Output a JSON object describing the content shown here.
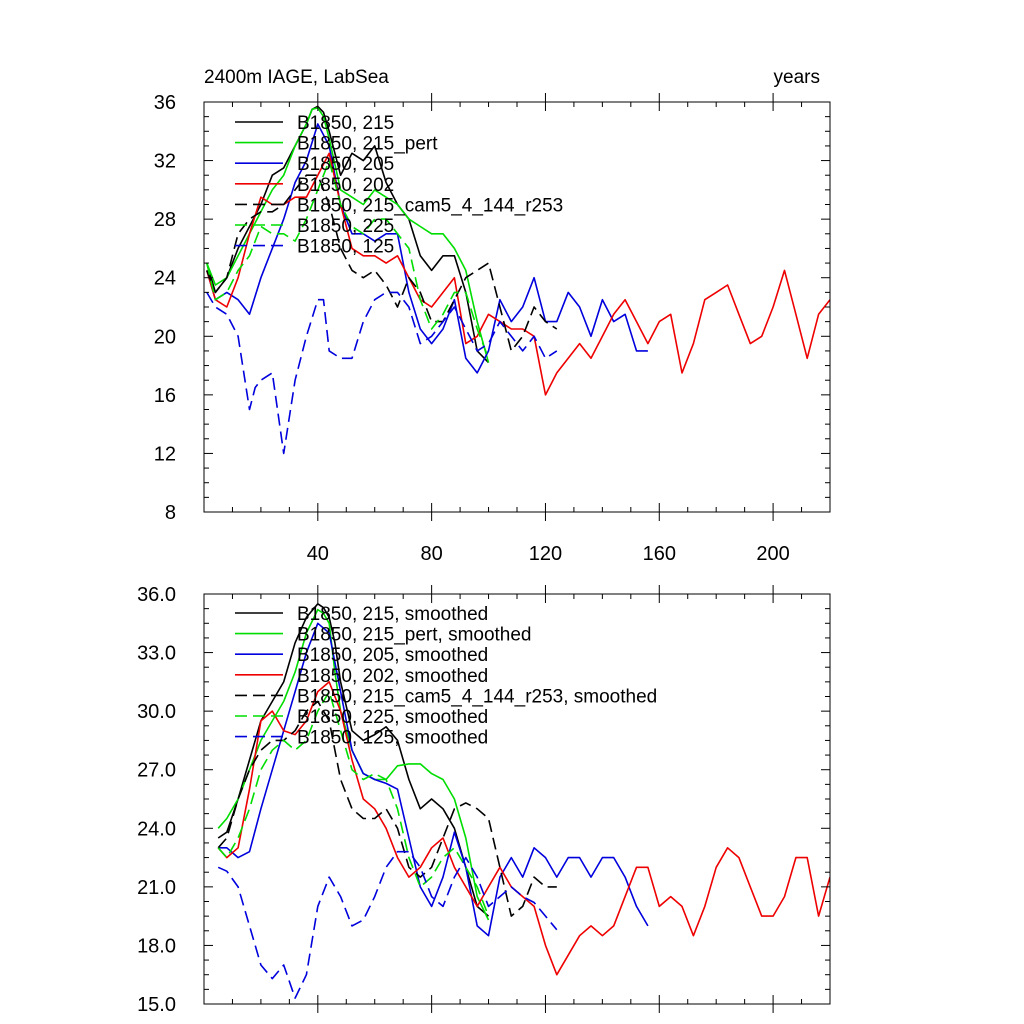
{
  "chart_data": [
    {
      "type": "line",
      "title": "2400m IAGE, LabSea",
      "units_label": "years",
      "xlim": [
        0,
        220
      ],
      "ylim": [
        8,
        36
      ],
      "xticks": [
        40,
        80,
        120,
        160,
        200
      ],
      "xtick_labels": [
        "40",
        "80",
        "120",
        "160",
        "200"
      ],
      "yticks": [
        8,
        12,
        16,
        20,
        24,
        28,
        32,
        36
      ],
      "ytick_labels": [
        "8",
        "12",
        "16",
        "20",
        "24",
        "28",
        "32",
        "36"
      ],
      "series": [
        {
          "name": "B1850, 215",
          "color": "#000000",
          "dash": "solid",
          "x": [
            1,
            4,
            8,
            12,
            16,
            20,
            24,
            28,
            32,
            36,
            38,
            40,
            42,
            44,
            48,
            52,
            56,
            60,
            64,
            68,
            72,
            76,
            80,
            84,
            88,
            92,
            96,
            100
          ],
          "y": [
            25,
            23,
            24,
            26,
            27.5,
            29,
            31,
            31.5,
            33,
            34.5,
            35.5,
            35.7,
            35.3,
            34,
            31,
            32.5,
            32,
            33,
            30.5,
            29,
            28,
            25.5,
            24.5,
            25.5,
            25.5,
            23,
            19,
            18.2
          ]
        },
        {
          "name": "B1850, 215_pert",
          "color": "#00dd00",
          "dash": "solid",
          "x": [
            1,
            4,
            8,
            12,
            16,
            20,
            24,
            28,
            32,
            36,
            38,
            40,
            42,
            44,
            48,
            52,
            56,
            60,
            64,
            68,
            72,
            76,
            80,
            84,
            88,
            92,
            96,
            100
          ],
          "y": [
            25,
            23.5,
            24,
            25.5,
            27,
            28.5,
            30,
            31,
            33,
            34.5,
            35.5,
            35.6,
            35,
            33.5,
            30,
            29.5,
            29,
            30,
            29.5,
            29,
            28,
            27.5,
            27,
            27,
            26,
            24.5,
            21,
            18.2
          ]
        },
        {
          "name": "B1850, 205",
          "color": "#0000dd",
          "dash": "solid",
          "x": [
            1,
            4,
            8,
            12,
            16,
            20,
            24,
            28,
            32,
            36,
            40,
            44,
            48,
            52,
            56,
            60,
            64,
            68,
            72,
            76,
            80,
            84,
            88,
            92,
            96,
            100,
            104,
            108,
            112,
            116,
            120,
            124,
            128,
            132,
            136,
            140,
            144,
            148,
            152,
            156
          ],
          "y": [
            24.5,
            22.5,
            23,
            22.5,
            21.5,
            24,
            26,
            28,
            30.5,
            32,
            34.5,
            33,
            29,
            27,
            27,
            26.5,
            27,
            27,
            23,
            20.5,
            19.5,
            20.5,
            22.5,
            18.5,
            17.5,
            19,
            22.5,
            21,
            22,
            24,
            21,
            21,
            23,
            22,
            20,
            22.5,
            21,
            21.5,
            19,
            19
          ]
        },
        {
          "name": "B1850, 202",
          "color": "#ee0000",
          "dash": "solid",
          "x": [
            1,
            4,
            8,
            12,
            16,
            20,
            24,
            28,
            32,
            36,
            40,
            44,
            48,
            52,
            56,
            60,
            64,
            68,
            72,
            76,
            80,
            84,
            88,
            92,
            96,
            100,
            104,
            108,
            112,
            116,
            120,
            124,
            128,
            132,
            136,
            140,
            144,
            148,
            152,
            156,
            160,
            164,
            168,
            172,
            176,
            180,
            184,
            188,
            192,
            196,
            200,
            204,
            208,
            212,
            216,
            220
          ],
          "y": [
            24.5,
            22.5,
            22,
            24,
            27,
            29.5,
            29,
            29,
            29.5,
            29.5,
            31,
            32.5,
            29,
            26,
            25.5,
            25.5,
            25,
            25.5,
            24,
            22.5,
            22,
            23,
            24,
            19.5,
            20,
            21.5,
            21,
            20.5,
            20.5,
            20,
            16,
            17.5,
            18.5,
            19.5,
            18.5,
            20,
            21.5,
            22.5,
            21,
            19.5,
            21,
            21.5,
            17.5,
            19.5,
            22.5,
            23,
            23.5,
            21.5,
            19.5,
            20,
            22,
            24.5,
            21.5,
            18.5,
            21.5,
            22.5
          ]
        },
        {
          "name": "B1850, 215_cam5_4_144_r253",
          "color": "#000000",
          "dash": "dashed",
          "x": [
            1,
            4,
            8,
            12,
            16,
            20,
            24,
            28,
            32,
            36,
            40,
            44,
            48,
            52,
            56,
            60,
            64,
            68,
            72,
            76,
            80,
            84,
            88,
            92,
            96,
            100,
            104,
            108,
            112,
            116,
            120,
            124
          ],
          "y": [
            24.5,
            23,
            24,
            27,
            28,
            28.5,
            28.5,
            29,
            30,
            31,
            31,
            29,
            26,
            24.5,
            24,
            24.5,
            23.5,
            22,
            24,
            23,
            21,
            21,
            22.5,
            24,
            24.5,
            25,
            22,
            19,
            20,
            22,
            21,
            20.5
          ]
        },
        {
          "name": "B1850, 225",
          "color": "#00dd00",
          "dash": "dashed",
          "x": [
            1,
            4,
            8,
            12,
            16,
            20,
            24,
            28,
            32,
            36,
            40,
            44,
            48,
            52,
            56,
            60,
            64,
            68,
            72,
            76,
            80,
            84,
            88,
            92,
            96,
            100
          ],
          "y": [
            25,
            22.5,
            23,
            24.5,
            25.5,
            27.5,
            27,
            27,
            26.5,
            28,
            30,
            32,
            29,
            27.5,
            27,
            28,
            28,
            27,
            26,
            22.5,
            20.5,
            21.5,
            23,
            23,
            20.5,
            18.5
          ]
        },
        {
          "name": "B1850, 125",
          "color": "#0000dd",
          "dash": "dashed",
          "x": [
            1,
            4,
            8,
            12,
            16,
            18,
            20,
            24,
            28,
            32,
            36,
            40,
            42,
            44,
            48,
            52,
            56,
            60,
            64,
            68,
            72,
            76,
            80,
            84,
            88,
            92,
            96,
            100,
            104,
            108,
            112,
            116,
            120,
            124
          ],
          "y": [
            23,
            22,
            21.5,
            20,
            15,
            16.5,
            17,
            17.5,
            12,
            17,
            20,
            22.5,
            22.5,
            19,
            18.5,
            18.5,
            21,
            22.5,
            23,
            23,
            22,
            19.5,
            20,
            21,
            22,
            20.5,
            19,
            19.5,
            21,
            20,
            19,
            20,
            18.5,
            19
          ]
        }
      ]
    },
    {
      "type": "line",
      "title": "",
      "xlim": [
        0,
        220
      ],
      "ylim": [
        15,
        36
      ],
      "xticks": [
        40,
        80,
        120,
        160,
        200
      ],
      "xtick_labels": [],
      "yticks": [
        15,
        18,
        21,
        24,
        27,
        30,
        33,
        36
      ],
      "ytick_labels": [
        "15.0",
        "18.0",
        "21.0",
        "24.0",
        "27.0",
        "30.0",
        "33.0",
        "36.0"
      ],
      "series": [
        {
          "name": "B1850, 215, smoothed",
          "color": "#000000",
          "dash": "solid",
          "x": [
            5,
            8,
            12,
            16,
            20,
            24,
            28,
            32,
            36,
            40,
            42,
            44,
            46,
            48,
            52,
            56,
            60,
            64,
            68,
            72,
            76,
            80,
            84,
            88,
            92,
            96,
            100
          ],
          "y": [
            23.5,
            23.8,
            25.5,
            27.5,
            29.5,
            30.5,
            31.5,
            33.5,
            34.8,
            35.5,
            35.3,
            34.8,
            33.5,
            31.5,
            29,
            28.5,
            28.8,
            29.2,
            28.5,
            26.5,
            25,
            25.5,
            25,
            24,
            22,
            20,
            19.5
          ]
        },
        {
          "name": "B1850, 215_pert, smoothed",
          "color": "#00dd00",
          "dash": "solid",
          "x": [
            5,
            8,
            12,
            16,
            20,
            24,
            28,
            32,
            36,
            40,
            42,
            44,
            46,
            48,
            52,
            56,
            60,
            64,
            68,
            72,
            76,
            80,
            84,
            88,
            92,
            96,
            100
          ],
          "y": [
            24,
            24.5,
            25.5,
            27,
            28.5,
            29.5,
            30.5,
            32,
            34,
            35.2,
            35,
            34.5,
            32,
            30,
            28,
            26.8,
            26.5,
            26.5,
            27.2,
            27.3,
            27.3,
            26.8,
            26.5,
            25.5,
            23.5,
            20.5,
            19.3
          ]
        },
        {
          "name": "B1850, 205, smoothed",
          "color": "#0000dd",
          "dash": "solid",
          "x": [
            5,
            8,
            12,
            16,
            20,
            24,
            28,
            32,
            36,
            40,
            44,
            48,
            52,
            56,
            60,
            64,
            68,
            72,
            76,
            80,
            84,
            88,
            92,
            96,
            100,
            104,
            108,
            112,
            116,
            120,
            124,
            128,
            132,
            136,
            140,
            144,
            148,
            152,
            156
          ],
          "y": [
            23,
            23,
            22.5,
            22.8,
            25,
            27,
            29,
            31,
            33,
            34.5,
            34,
            31,
            28,
            26.8,
            26.5,
            26.3,
            26,
            23.5,
            21,
            20,
            21.5,
            23.8,
            22,
            19,
            18.5,
            21.5,
            22.5,
            21.5,
            23,
            22.5,
            21.5,
            22.5,
            22.5,
            21.5,
            22.5,
            22.5,
            21.5,
            20,
            19
          ]
        },
        {
          "name": "B1850, 202, smoothed",
          "color": "#ee0000",
          "dash": "solid",
          "x": [
            5,
            8,
            12,
            16,
            20,
            24,
            28,
            32,
            36,
            40,
            44,
            48,
            52,
            56,
            60,
            64,
            68,
            72,
            76,
            80,
            84,
            88,
            92,
            96,
            100,
            104,
            108,
            112,
            116,
            120,
            124,
            128,
            132,
            136,
            140,
            144,
            148,
            152,
            156,
            160,
            164,
            168,
            172,
            176,
            180,
            184,
            188,
            192,
            196,
            200,
            204,
            208,
            212,
            216,
            220
          ],
          "y": [
            23,
            22.5,
            23,
            26,
            29.5,
            30,
            29,
            28.8,
            29.5,
            31,
            31.5,
            30,
            27.5,
            25.5,
            25,
            24,
            22.5,
            21.5,
            22,
            23,
            23.5,
            22,
            21,
            20,
            21,
            22,
            21,
            20.5,
            20,
            18,
            16.5,
            17.5,
            18.5,
            19,
            18.5,
            19,
            20.5,
            22,
            22,
            20,
            20.5,
            20,
            18.5,
            20,
            22,
            23,
            22.5,
            21,
            19.5,
            19.5,
            20.5,
            22.5,
            22.5,
            19.5,
            21.5
          ]
        },
        {
          "name": "B1850, 215_cam5_4_144_r253, smoothed",
          "color": "#000000",
          "dash": "dashed",
          "x": [
            5,
            8,
            12,
            16,
            20,
            24,
            28,
            32,
            36,
            40,
            44,
            48,
            52,
            56,
            60,
            64,
            68,
            72,
            76,
            80,
            84,
            88,
            92,
            96,
            100,
            104,
            108,
            112,
            116,
            120,
            124
          ],
          "y": [
            23,
            23.5,
            25.5,
            27,
            28,
            28.5,
            28.5,
            29,
            30,
            30.5,
            29.5,
            26.5,
            25,
            24.5,
            24.5,
            25,
            24,
            22,
            21.5,
            22,
            23.5,
            25,
            25.3,
            25,
            24.5,
            22,
            19.5,
            20,
            21.5,
            21,
            21
          ]
        },
        {
          "name": "B1850, 225, smoothed",
          "color": "#00dd00",
          "dash": "dashed",
          "x": [
            5,
            8,
            12,
            16,
            20,
            24,
            28,
            32,
            36,
            40,
            44,
            48,
            52,
            56,
            60,
            64,
            68,
            72,
            76,
            80,
            84,
            88,
            92,
            96,
            100
          ],
          "y": [
            23,
            22.5,
            23.5,
            25,
            27,
            28,
            28.5,
            28,
            28.5,
            30,
            31,
            29,
            27,
            26.5,
            26.8,
            26.5,
            25,
            22.5,
            21,
            21.5,
            22.5,
            23,
            22,
            21,
            19.5
          ]
        },
        {
          "name": "B1850, 125, smoothed",
          "color": "#0000dd",
          "dash": "dashed",
          "x": [
            5,
            8,
            12,
            16,
            20,
            24,
            28,
            32,
            36,
            40,
            44,
            48,
            52,
            56,
            60,
            64,
            68,
            72,
            76,
            80,
            84,
            88,
            92,
            96,
            100,
            104,
            108,
            112,
            116,
            120,
            124
          ],
          "y": [
            22,
            21.8,
            21,
            19,
            17,
            16.3,
            17,
            15.3,
            16.5,
            20,
            21.5,
            20.5,
            19,
            19.3,
            20.5,
            22,
            22.8,
            22.8,
            22,
            20.5,
            20,
            21.5,
            22.5,
            21.5,
            20,
            20.5,
            21,
            20.5,
            20.2,
            19.5,
            18.8
          ]
        }
      ]
    }
  ]
}
